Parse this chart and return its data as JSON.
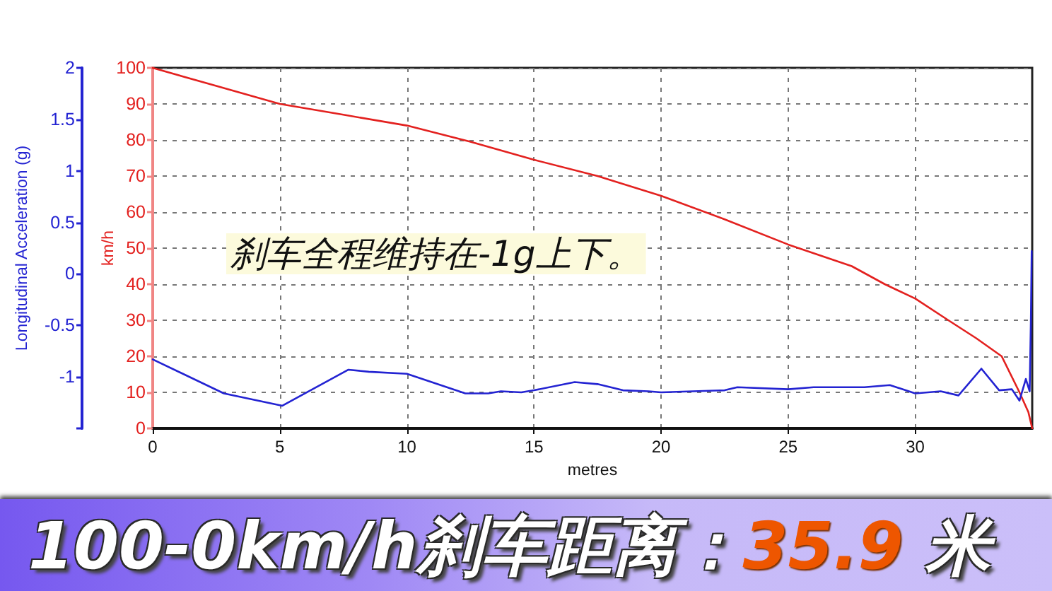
{
  "chart_data": {
    "type": "line",
    "title": "100-0km/h刹车距离：35.9 米",
    "xlabel": "metres",
    "ylabel": "km/h",
    "y2label": "Longitudinal Acceleration (g)",
    "annotations": [
      "刹车全程维持在-1g上下。"
    ],
    "xlim": [
      0,
      34.6
    ],
    "xticks": [
      0,
      5,
      10,
      15,
      20,
      25,
      30
    ],
    "ylim": [
      0,
      100
    ],
    "yticks": [
      0,
      10,
      20,
      30,
      40,
      50,
      60,
      70,
      80,
      90,
      100
    ],
    "y2lim": [
      -1.5,
      2
    ],
    "y2ticks": [
      {
        "value": -1.5,
        "label": null
      },
      -1,
      -0.5,
      0,
      0.5,
      1,
      1.5,
      2
    ],
    "grid": true,
    "marker": "none",
    "series": [
      {
        "color": "#e3211f",
        "axis": "y",
        "x": [
          0,
          2.5,
          5,
          7.5,
          10,
          12.5,
          15,
          17.5,
          20,
          22.5,
          25,
          27.5,
          28.8,
          30,
          31.3,
          32.4,
          33.4,
          34.1,
          34.45,
          34.6
        ],
        "values": [
          100,
          95,
          90,
          87,
          84,
          79.5,
          74.5,
          70,
          64.5,
          58,
          51,
          45,
          40,
          36,
          30,
          25,
          20,
          10,
          4.5,
          0
        ]
      },
      {
        "color": "#2323d2",
        "axis": "y2",
        "x": [
          0,
          2.8,
          5.1,
          7.7,
          8.5,
          10,
          12.3,
          13.2,
          13.7,
          14.5,
          15,
          16.6,
          17.5,
          18.5,
          19.5,
          20,
          22.5,
          23,
          25,
          26,
          28,
          29,
          30,
          31,
          31.7,
          32.6,
          33.3,
          33.8,
          34.1,
          34.35,
          34.5,
          34.55,
          34.58
        ],
        "values": [
          -0.83,
          -1.16,
          -1.28,
          -0.93,
          -0.95,
          -0.97,
          -1.16,
          -1.16,
          -1.14,
          -1.15,
          -1.13,
          -1.05,
          -1.07,
          -1.13,
          -1.14,
          -1.15,
          -1.13,
          -1.1,
          -1.12,
          -1.1,
          -1.1,
          -1.08,
          -1.16,
          -1.14,
          -1.18,
          -0.92,
          -1.13,
          -1.12,
          -1.23,
          -1.02,
          -1.14,
          -0.43,
          0.22
        ]
      }
    ]
  }
}
